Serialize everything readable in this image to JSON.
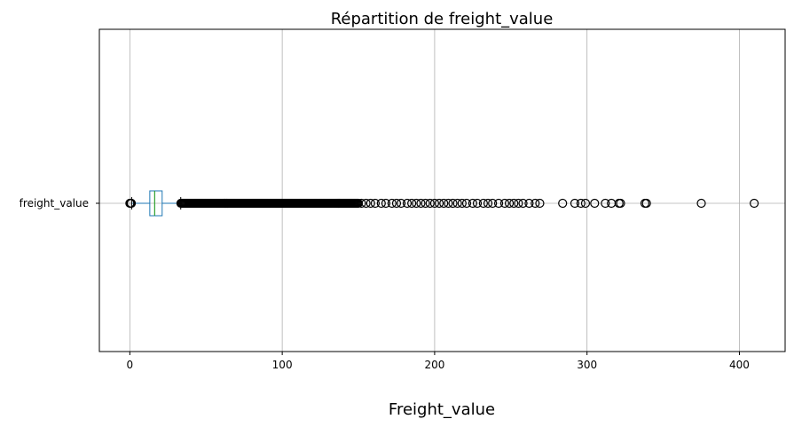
{
  "chart_data": {
    "type": "boxplot",
    "orientation": "horizontal",
    "title": "Répartition de freight_value",
    "xlabel": "Freight_value",
    "ylabel": "",
    "xlim": [
      -20,
      430
    ],
    "xticks": [
      0,
      100,
      200,
      300,
      400
    ],
    "grid": true,
    "series": [
      {
        "name": "freight_value",
        "whisker_low": 1.2,
        "q1": 13.1,
        "median": 16.3,
        "q3": 21.2,
        "whisker_high": 33.4,
        "low_outliers": [
          0,
          0.5,
          1
        ],
        "dense_outlier_range": [
          33.5,
          150
        ],
        "outliers": [
          152,
          155,
          158,
          161,
          165,
          168,
          172,
          175,
          178,
          182,
          185,
          188,
          191,
          194,
          197,
          200,
          203,
          206,
          209,
          212,
          215,
          218,
          221,
          225,
          228,
          232,
          235,
          238,
          242,
          246,
          249,
          252,
          255,
          258,
          262,
          266,
          269,
          284,
          292,
          296,
          299,
          305,
          312,
          316,
          321,
          322,
          338,
          339,
          375,
          409.7
        ]
      }
    ],
    "colors": {
      "box": "#1f77b4",
      "median": "#2ca02c",
      "whisker_cap": "#000000",
      "grid": "#b0b0b0",
      "outlier_edge": "#000000"
    }
  }
}
